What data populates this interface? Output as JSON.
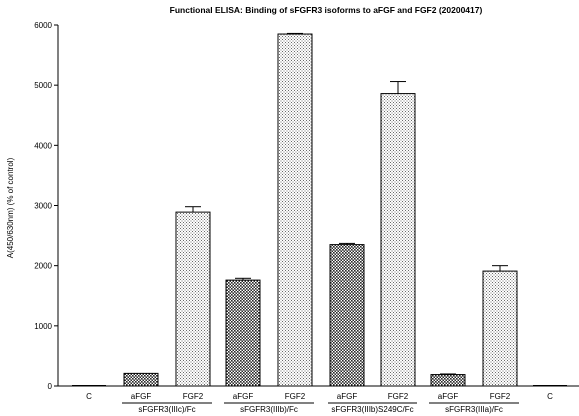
{
  "chart_data": {
    "type": "bar",
    "title": "Functional ELISA: Binding of sFGFR3 isoforms to aFGF and FGF2 (20200417)",
    "xlabel": "",
    "ylabel": "A(450/630nm) (% of control)",
    "ylim": [
      0,
      6000
    ],
    "yticks": [
      0,
      1000,
      2000,
      3000,
      4000,
      5000,
      6000
    ],
    "grid": false,
    "categories": [
      "C",
      "aFGF",
      "FGF2",
      "aFGF",
      "FGF2",
      "aFGF",
      "FGF2",
      "aFGF",
      "FGF2",
      "C"
    ],
    "values": [
      0,
      210,
      2890,
      1760,
      5850,
      2350,
      4860,
      190,
      1910,
      0
    ],
    "errors": [
      0,
      0,
      90,
      30,
      10,
      20,
      200,
      10,
      90,
      0
    ],
    "patterns": [
      "none",
      "dense",
      "light",
      "dense",
      "light",
      "dense",
      "light",
      "dense",
      "light",
      "none"
    ],
    "groups": [
      {
        "label": "sFGFR3(IIIc)/Fc",
        "start": 1,
        "end": 2
      },
      {
        "label": "sFGFR3(IIIb)/Fc",
        "start": 3,
        "end": 4
      },
      {
        "label": "sFGFR3(IIIb)S249C/Fc",
        "start": 5,
        "end": 6
      },
      {
        "label": "sFGFR3(IIIa)/Fc",
        "start": 7,
        "end": 8
      }
    ]
  }
}
